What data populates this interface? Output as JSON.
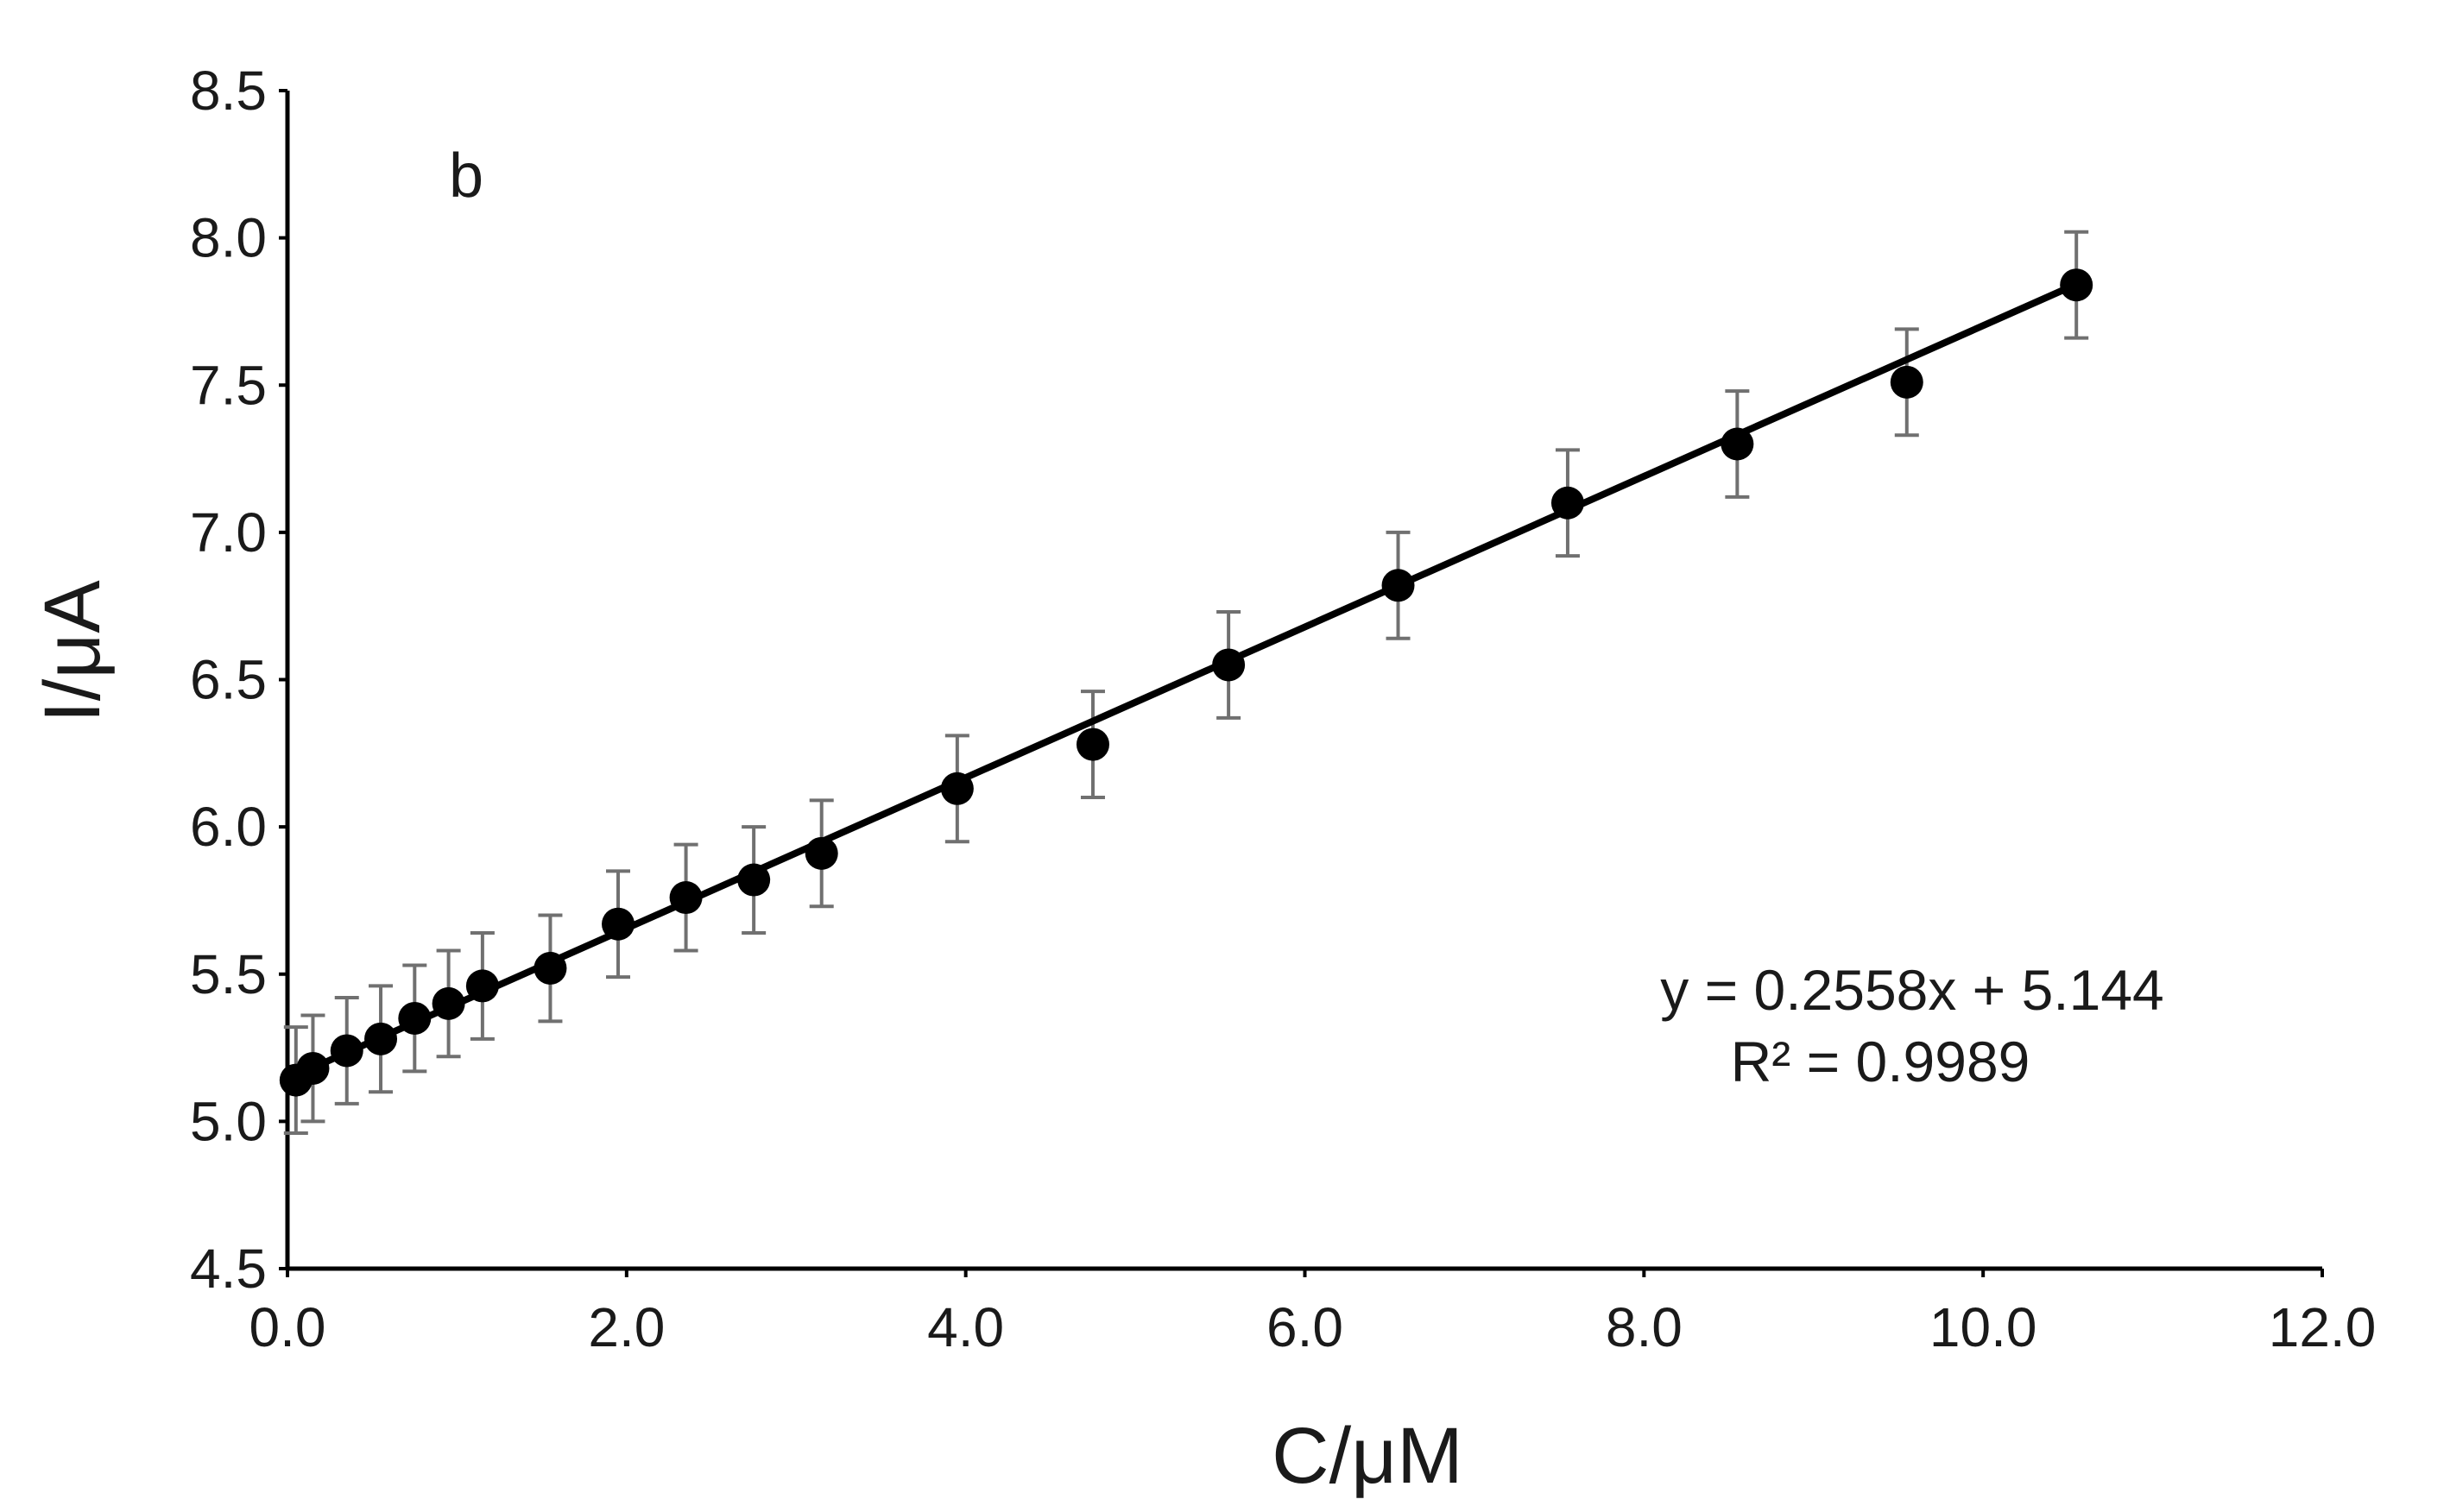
{
  "chart_data": {
    "type": "scatter",
    "panel_label": "b",
    "xlabel": "C/μM",
    "ylabel": "I/μA",
    "xlim": [
      0,
      12
    ],
    "ylim": [
      4.5,
      8.5
    ],
    "x_ticks": [
      "0.0",
      "2.0",
      "4.0",
      "6.0",
      "8.0",
      "10.0",
      "12.0"
    ],
    "y_ticks": [
      "4.5",
      "5.0",
      "5.5",
      "6.0",
      "6.5",
      "7.0",
      "7.5",
      "8.0",
      "8.5"
    ],
    "grid": false,
    "series": [
      {
        "x": [
          0.05,
          0.15,
          0.35,
          0.55,
          0.75,
          0.95,
          1.15,
          1.55,
          1.95,
          2.35,
          2.75,
          3.15,
          3.95,
          4.75,
          5.55,
          6.55,
          7.55,
          8.55,
          9.55,
          10.55
        ],
        "y": [
          5.14,
          5.18,
          5.24,
          5.28,
          5.35,
          5.4,
          5.46,
          5.52,
          5.67,
          5.76,
          5.82,
          5.91,
          6.13,
          6.28,
          6.55,
          6.82,
          7.1,
          7.3,
          7.51,
          7.84
        ],
        "error": [
          0.18,
          0.18,
          0.18,
          0.18,
          0.18,
          0.18,
          0.18,
          0.18,
          0.18,
          0.18,
          0.18,
          0.18,
          0.18,
          0.18,
          0.18,
          0.18,
          0.18,
          0.18,
          0.18,
          0.18
        ],
        "color": "#000000",
        "error_color": "#707070"
      }
    ],
    "fit": {
      "slope": 0.2558,
      "intercept": 5.144,
      "x_range": [
        0.05,
        10.55
      ],
      "equation": "y = 0.2558x + 5.144",
      "r_squared": "R² = 0.9989"
    }
  }
}
